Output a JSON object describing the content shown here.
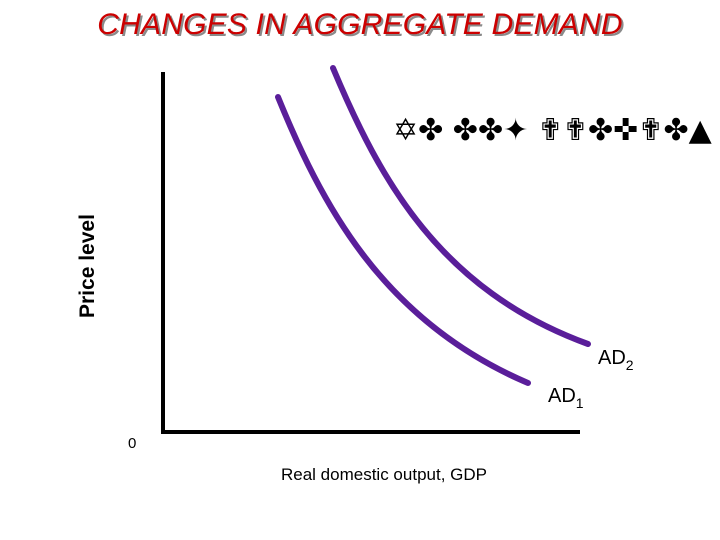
{
  "page": {
    "title": "CHANGES IN AGGREGATE DEMAND",
    "title_color": "#cc0000",
    "decorative_text": "✡✤ ✤✤✦ ✟✟✤✜✟✤▲"
  },
  "chart_data": {
    "type": "line",
    "title": "CHANGES IN AGGREGATE DEMAND",
    "xlabel": "Real domestic output, GDP",
    "ylabel": "Price level",
    "origin_label": "0",
    "curve_color": "#5a1e9a",
    "series": [
      {
        "name": "AD",
        "sub": "1"
      },
      {
        "name": "AD",
        "sub": "2"
      }
    ]
  }
}
